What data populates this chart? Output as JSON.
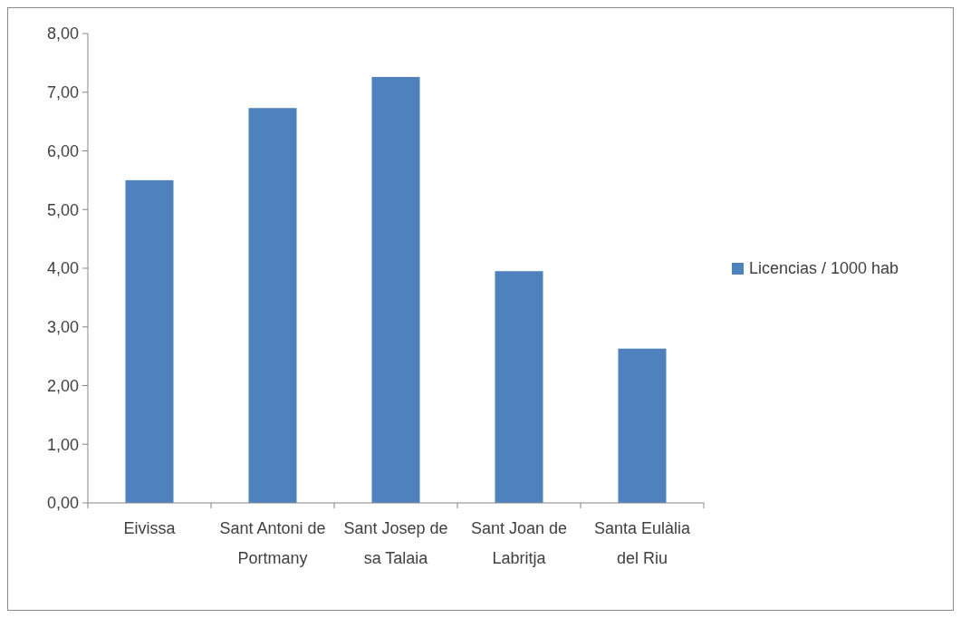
{
  "chart_data": {
    "type": "bar",
    "categories": [
      "Eivissa",
      "Sant Antoni de Portmany",
      "Sant Josep de sa Talaia",
      "Sant Joan de Labritja",
      "Santa Eulàlia del Riu"
    ],
    "series": [
      {
        "name": "Licencias / 1000 hab",
        "color": "#4f81bd",
        "values": [
          5.5,
          6.73,
          7.26,
          3.95,
          2.63
        ]
      }
    ],
    "ylim": [
      0,
      8
    ],
    "yticks": [
      {
        "value": 0,
        "label": "0,00"
      },
      {
        "value": 1,
        "label": "1,00"
      },
      {
        "value": 2,
        "label": "2,00"
      },
      {
        "value": 3,
        "label": "3,00"
      },
      {
        "value": 4,
        "label": "4,00"
      },
      {
        "value": 5,
        "label": "5,00"
      },
      {
        "value": 6,
        "label": "6,00"
      },
      {
        "value": 7,
        "label": "7,00"
      },
      {
        "value": 8,
        "label": "8,00"
      }
    ],
    "legend": "right",
    "grid": false
  }
}
